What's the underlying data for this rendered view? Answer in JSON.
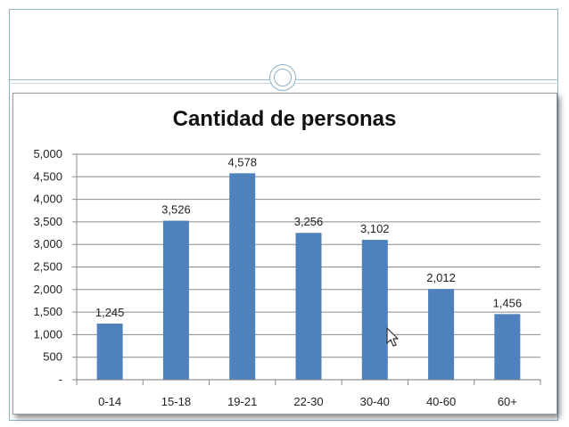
{
  "chart_data": {
    "type": "bar",
    "title": "Cantidad de personas",
    "categories": [
      "0-14",
      "15-18",
      "19-21",
      "22-30",
      "30-40",
      "40-60",
      "60+"
    ],
    "values": [
      1245,
      3526,
      4578,
      3256,
      3102,
      2012,
      1456
    ],
    "value_labels": [
      "1,245",
      "3,526",
      "4,578",
      "3,256",
      "3,102",
      "2,012",
      "1,456"
    ],
    "yticks": [
      {
        "value": 0,
        "label": "-"
      },
      {
        "value": 500,
        "label": "500"
      },
      {
        "value": 1000,
        "label": "1,000"
      },
      {
        "value": 1500,
        "label": "1,500"
      },
      {
        "value": 2000,
        "label": "2,000"
      },
      {
        "value": 2500,
        "label": "2,500"
      },
      {
        "value": 3000,
        "label": "3,000"
      },
      {
        "value": 3500,
        "label": "3,500"
      },
      {
        "value": 4000,
        "label": "4,000"
      },
      {
        "value": 4500,
        "label": "4,500"
      },
      {
        "value": 5000,
        "label": "5,000"
      }
    ],
    "ylim": [
      0,
      5000
    ],
    "grid": true,
    "legend": "none",
    "bar_color": "#4f81bd"
  }
}
